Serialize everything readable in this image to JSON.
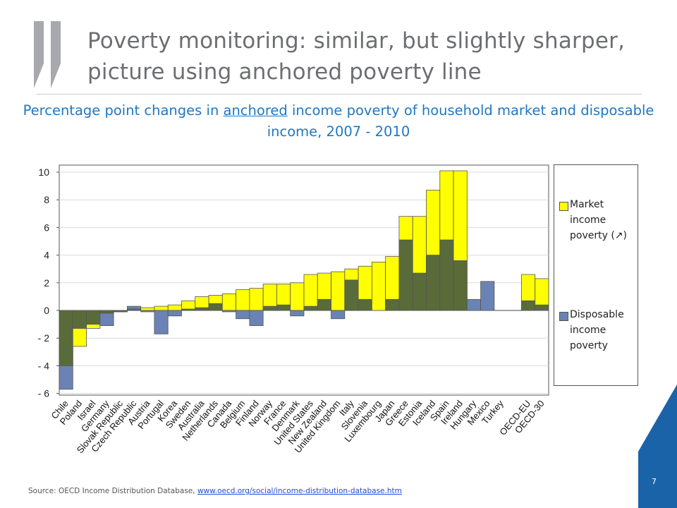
{
  "slide": {
    "title": "Poverty monitoring: similar, but slightly sharper, picture using anchored poverty line",
    "subtitle_pre": "Percentage point changes in ",
    "subtitle_u": "anchored",
    "subtitle_post": " income poverty of household market and disposable income, 2007 - 2010",
    "source_text": "Source: OECD Income Distribution Database, ",
    "source_link": "www.oecd.org/social/income-distribution-database.htm",
    "page_number": "7",
    "colors": {
      "brand_blue": "#1f78c1",
      "corner_blue": "#1a63a8"
    }
  },
  "legend": {
    "market_label": "Market income poverty (↗)",
    "disposable_label": "Disposable income poverty"
  },
  "chart_data": {
    "type": "bar",
    "categories": [
      "Chile",
      "Poland",
      "Israel",
      "Germany",
      "Slovak Republic",
      "Czech Republic",
      "Austria",
      "Portugal",
      "Korea",
      "Sweden",
      "Australia",
      "Netherlands",
      "Canada",
      "Belgium",
      "Finland",
      "Norway",
      "France",
      "Denmark",
      "United States",
      "New Zealand",
      "United Kingdom",
      "Italy",
      "Slovenia",
      "Luxembourg",
      "Japan",
      "Greece",
      "Estonia",
      "Iceland",
      "Spain",
      "Ireland",
      "Hungary",
      "Mexico",
      "Turkey",
      "",
      "OECD-EU",
      "OECD-30"
    ],
    "series": [
      {
        "name": "Market income poverty (↗)",
        "color": "#ffff00",
        "values": [
          -4.0,
          -2.6,
          -1.3,
          -0.2,
          -0.1,
          0.1,
          0.2,
          0.3,
          0.4,
          0.7,
          1.0,
          1.1,
          1.2,
          1.5,
          1.6,
          1.9,
          1.9,
          2.0,
          2.6,
          2.7,
          2.8,
          3.0,
          3.2,
          3.5,
          3.9,
          6.8,
          6.8,
          8.7,
          10.1,
          10.1,
          null,
          null,
          0,
          null,
          2.6,
          2.3
        ]
      },
      {
        "name": "Disposable income poverty",
        "color": "#6b83b4",
        "values": [
          -5.7,
          -1.3,
          -1.0,
          -1.1,
          -0.1,
          0.3,
          -0.1,
          -1.7,
          -0.4,
          0.1,
          0.2,
          0.5,
          -0.1,
          -0.6,
          -1.1,
          0.3,
          0.4,
          -0.4,
          0.3,
          0.8,
          -0.6,
          2.2,
          0.8,
          0,
          0.8,
          5.1,
          2.7,
          4.0,
          5.1,
          3.6,
          0.8,
          2.1,
          0,
          null,
          0.7,
          0.4
        ]
      }
    ],
    "ylim": [
      -6,
      11
    ],
    "yticks": [
      10,
      8,
      6,
      4,
      2,
      0,
      -2,
      -4,
      -6
    ],
    "ytick_labels": [
      "10",
      "8",
      "6",
      "4",
      "2",
      "0",
      "- 2",
      "- 4",
      "- 6"
    ],
    "overlap_color": "#5a6b3a"
  }
}
